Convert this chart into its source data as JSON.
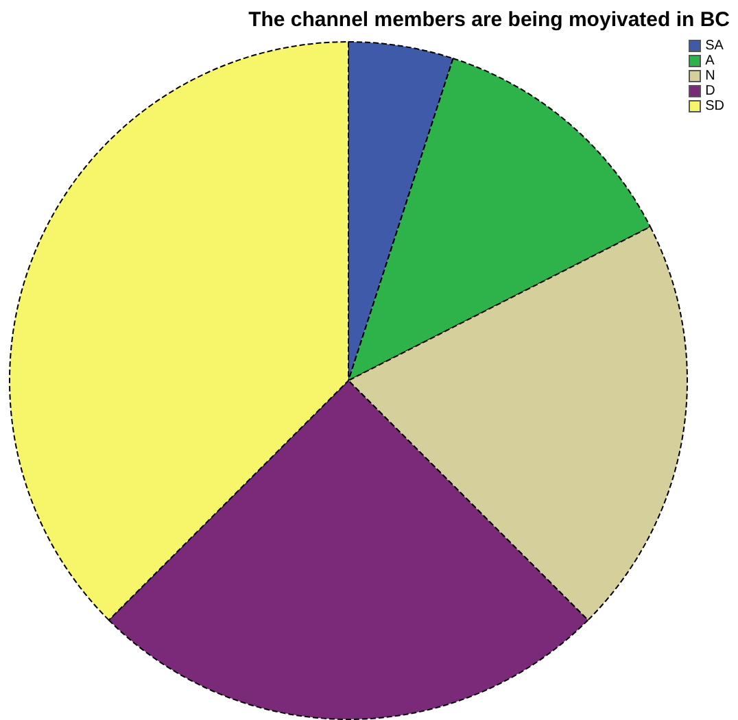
{
  "chart_data": {
    "type": "pie",
    "title": "The channel members are being moyivated in BC",
    "categories": [
      "SA",
      "A",
      "N",
      "D",
      "SD"
    ],
    "values": [
      5,
      12.5,
      20,
      25,
      37.5
    ],
    "colors": [
      "#3f5aa8",
      "#2db34a",
      "#d5cf9c",
      "#7b2a7a",
      "#f7f56a"
    ],
    "legend": "top right"
  }
}
